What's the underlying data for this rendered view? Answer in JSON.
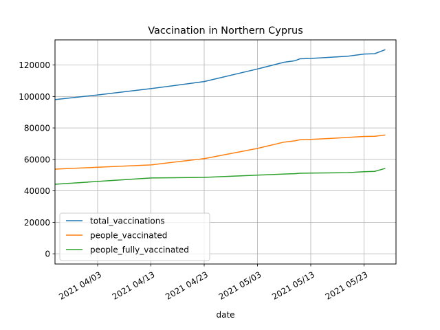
{
  "chart_data": {
    "type": "line",
    "title": "Vaccination in Northern Cyprus",
    "xlabel": "date",
    "ylabel": "",
    "x_type": "date",
    "xlim": [
      "2021-03-26",
      "2021-05-29"
    ],
    "ylim": [
      -6500,
      136000
    ],
    "grid": true,
    "legend_position": "lower-left",
    "x_ticks": [
      {
        "date": "2021-04-03",
        "label": "2021 04/03"
      },
      {
        "date": "2021-04-13",
        "label": "2021 04/13"
      },
      {
        "date": "2021-04-23",
        "label": "2021 04/23"
      },
      {
        "date": "2021-05-03",
        "label": "2021 05/03"
      },
      {
        "date": "2021-05-13",
        "label": "2021 05/13"
      },
      {
        "date": "2021-05-23",
        "label": "2021 05/23"
      }
    ],
    "y_ticks": [
      0,
      20000,
      40000,
      60000,
      80000,
      100000,
      120000
    ],
    "series": [
      {
        "name": "total_vaccinations",
        "color": "#1f77b4",
        "points": [
          [
            "2021-03-26",
            98000
          ],
          [
            "2021-04-03",
            101000
          ],
          [
            "2021-04-13",
            105000
          ],
          [
            "2021-04-23",
            109500
          ],
          [
            "2021-05-03",
            117500
          ],
          [
            "2021-05-08",
            121800
          ],
          [
            "2021-05-10",
            122700
          ],
          [
            "2021-05-11",
            124000
          ],
          [
            "2021-05-13",
            124200
          ],
          [
            "2021-05-16",
            124800
          ],
          [
            "2021-05-20",
            125600
          ],
          [
            "2021-05-23",
            127000
          ],
          [
            "2021-05-25",
            127200
          ],
          [
            "2021-05-27",
            129800
          ]
        ]
      },
      {
        "name": "people_vaccinated",
        "color": "#ff7f0e",
        "points": [
          [
            "2021-03-26",
            53800
          ],
          [
            "2021-04-03",
            55000
          ],
          [
            "2021-04-13",
            56500
          ],
          [
            "2021-04-23",
            60500
          ],
          [
            "2021-05-03",
            67000
          ],
          [
            "2021-05-08",
            71000
          ],
          [
            "2021-05-10",
            71800
          ],
          [
            "2021-05-11",
            72500
          ],
          [
            "2021-05-13",
            72700
          ],
          [
            "2021-05-16",
            73200
          ],
          [
            "2021-05-20",
            74000
          ],
          [
            "2021-05-23",
            74600
          ],
          [
            "2021-05-25",
            74700
          ],
          [
            "2021-05-27",
            75500
          ]
        ]
      },
      {
        "name": "people_fully_vaccinated",
        "color": "#2ca02c",
        "points": [
          [
            "2021-03-26",
            44200
          ],
          [
            "2021-04-03",
            46000
          ],
          [
            "2021-04-13",
            48200
          ],
          [
            "2021-04-23",
            48600
          ],
          [
            "2021-05-03",
            50000
          ],
          [
            "2021-05-08",
            50700
          ],
          [
            "2021-05-10",
            50900
          ],
          [
            "2021-05-11",
            51200
          ],
          [
            "2021-05-13",
            51300
          ],
          [
            "2021-05-16",
            51400
          ],
          [
            "2021-05-20",
            51600
          ],
          [
            "2021-05-23",
            52200
          ],
          [
            "2021-05-25",
            52400
          ],
          [
            "2021-05-27",
            54300
          ]
        ]
      }
    ]
  }
}
